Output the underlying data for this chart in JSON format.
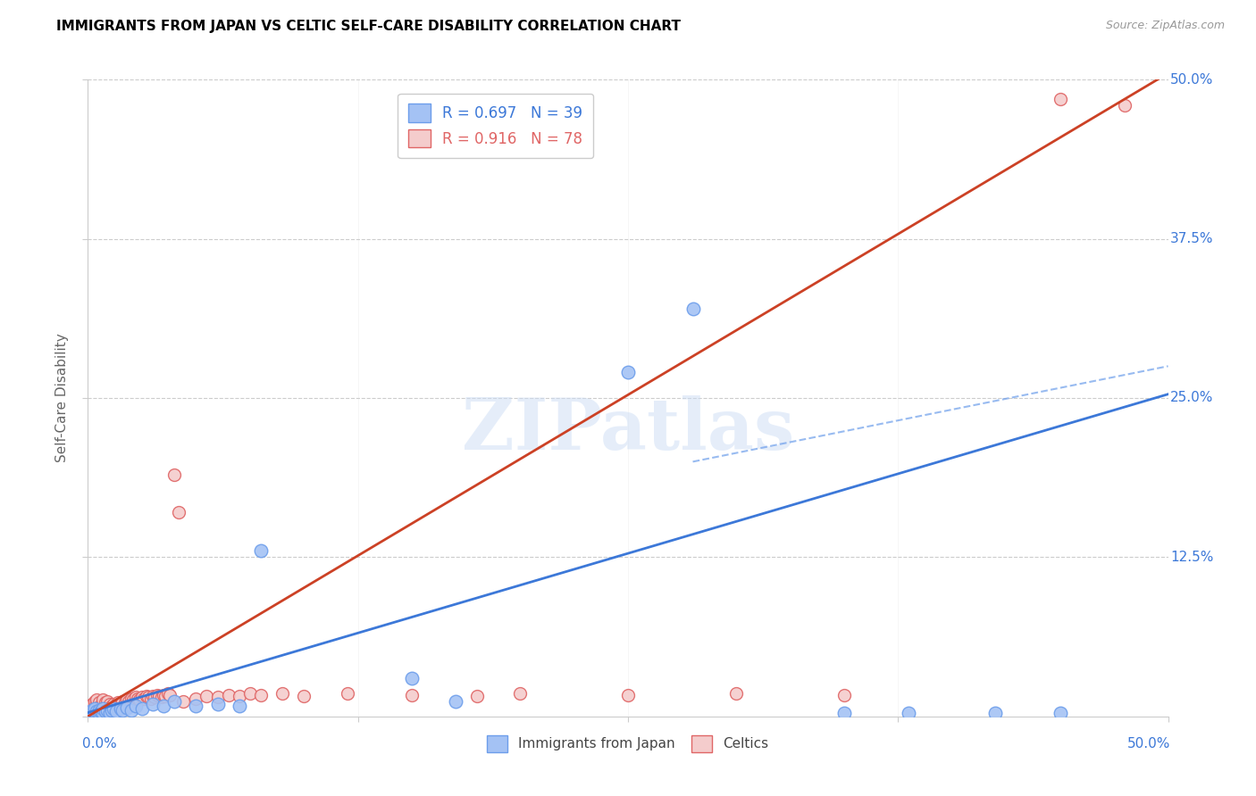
{
  "title": "IMMIGRANTS FROM JAPAN VS CELTIC SELF-CARE DISABILITY CORRELATION CHART",
  "source": "Source: ZipAtlas.com",
  "ylabel": "Self-Care Disability",
  "y_ticks": [
    0.0,
    0.125,
    0.25,
    0.375,
    0.5
  ],
  "y_tick_labels": [
    "",
    "12.5%",
    "25.0%",
    "37.5%",
    "50.0%"
  ],
  "x_ticks": [
    0.0,
    0.125,
    0.25,
    0.375,
    0.5
  ],
  "xlim": [
    0.0,
    0.5
  ],
  "ylim": [
    0.0,
    0.5
  ],
  "legend_r1": "R = 0.697",
  "legend_n1": "N = 39",
  "legend_r2": "R = 0.916",
  "legend_n2": "N = 78",
  "blue_face_color": "#a4c2f4",
  "blue_edge_color": "#6d9eeb",
  "pink_face_color": "#f4cccc",
  "pink_edge_color": "#e06666",
  "blue_line_color": "#3c78d8",
  "pink_line_color": "#cc4125",
  "blue_scatter": [
    [
      0.001,
      0.003
    ],
    [
      0.002,
      0.002
    ],
    [
      0.002,
      0.005
    ],
    [
      0.003,
      0.003
    ],
    [
      0.003,
      0.006
    ],
    [
      0.004,
      0.002
    ],
    [
      0.004,
      0.004
    ],
    [
      0.005,
      0.003
    ],
    [
      0.005,
      0.005
    ],
    [
      0.006,
      0.004
    ],
    [
      0.007,
      0.003
    ],
    [
      0.007,
      0.006
    ],
    [
      0.008,
      0.004
    ],
    [
      0.009,
      0.005
    ],
    [
      0.01,
      0.003
    ],
    [
      0.011,
      0.005
    ],
    [
      0.012,
      0.006
    ],
    [
      0.013,
      0.004
    ],
    [
      0.015,
      0.006
    ],
    [
      0.016,
      0.005
    ],
    [
      0.018,
      0.007
    ],
    [
      0.02,
      0.005
    ],
    [
      0.022,
      0.008
    ],
    [
      0.025,
      0.006
    ],
    [
      0.03,
      0.01
    ],
    [
      0.035,
      0.008
    ],
    [
      0.04,
      0.012
    ],
    [
      0.05,
      0.008
    ],
    [
      0.06,
      0.01
    ],
    [
      0.07,
      0.008
    ],
    [
      0.08,
      0.13
    ],
    [
      0.15,
      0.03
    ],
    [
      0.17,
      0.012
    ],
    [
      0.25,
      0.27
    ],
    [
      0.28,
      0.32
    ],
    [
      0.35,
      0.003
    ],
    [
      0.38,
      0.003
    ],
    [
      0.42,
      0.003
    ],
    [
      0.45,
      0.003
    ]
  ],
  "pink_scatter": [
    [
      0.001,
      0.003
    ],
    [
      0.001,
      0.005
    ],
    [
      0.001,
      0.007
    ],
    [
      0.002,
      0.003
    ],
    [
      0.002,
      0.005
    ],
    [
      0.002,
      0.008
    ],
    [
      0.002,
      0.01
    ],
    [
      0.003,
      0.004
    ],
    [
      0.003,
      0.006
    ],
    [
      0.003,
      0.009
    ],
    [
      0.003,
      0.012
    ],
    [
      0.004,
      0.004
    ],
    [
      0.004,
      0.007
    ],
    [
      0.004,
      0.01
    ],
    [
      0.004,
      0.013
    ],
    [
      0.005,
      0.005
    ],
    [
      0.005,
      0.008
    ],
    [
      0.005,
      0.011
    ],
    [
      0.006,
      0.006
    ],
    [
      0.006,
      0.009
    ],
    [
      0.007,
      0.007
    ],
    [
      0.007,
      0.01
    ],
    [
      0.007,
      0.013
    ],
    [
      0.008,
      0.008
    ],
    [
      0.008,
      0.011
    ],
    [
      0.009,
      0.009
    ],
    [
      0.009,
      0.012
    ],
    [
      0.01,
      0.01
    ],
    [
      0.01,
      0.007
    ],
    [
      0.011,
      0.008
    ],
    [
      0.012,
      0.01
    ],
    [
      0.013,
      0.009
    ],
    [
      0.014,
      0.011
    ],
    [
      0.015,
      0.01
    ],
    [
      0.016,
      0.012
    ],
    [
      0.017,
      0.011
    ],
    [
      0.018,
      0.013
    ],
    [
      0.019,
      0.012
    ],
    [
      0.02,
      0.014
    ],
    [
      0.021,
      0.013
    ],
    [
      0.022,
      0.015
    ],
    [
      0.023,
      0.014
    ],
    [
      0.024,
      0.013
    ],
    [
      0.025,
      0.015
    ],
    [
      0.026,
      0.014
    ],
    [
      0.027,
      0.016
    ],
    [
      0.028,
      0.015
    ],
    [
      0.029,
      0.014
    ],
    [
      0.03,
      0.016
    ],
    [
      0.031,
      0.015
    ],
    [
      0.032,
      0.017
    ],
    [
      0.033,
      0.016
    ],
    [
      0.034,
      0.015
    ],
    [
      0.035,
      0.017
    ],
    [
      0.036,
      0.016
    ],
    [
      0.037,
      0.018
    ],
    [
      0.038,
      0.017
    ],
    [
      0.04,
      0.19
    ],
    [
      0.042,
      0.16
    ],
    [
      0.044,
      0.012
    ],
    [
      0.05,
      0.014
    ],
    [
      0.055,
      0.016
    ],
    [
      0.06,
      0.015
    ],
    [
      0.065,
      0.017
    ],
    [
      0.07,
      0.016
    ],
    [
      0.075,
      0.018
    ],
    [
      0.08,
      0.017
    ],
    [
      0.09,
      0.018
    ],
    [
      0.1,
      0.016
    ],
    [
      0.12,
      0.018
    ],
    [
      0.15,
      0.017
    ],
    [
      0.18,
      0.016
    ],
    [
      0.2,
      0.018
    ],
    [
      0.25,
      0.017
    ],
    [
      0.3,
      0.018
    ],
    [
      0.35,
      0.017
    ],
    [
      0.45,
      0.485
    ],
    [
      0.48,
      0.48
    ]
  ],
  "blue_line_x": [
    0.0,
    0.5
  ],
  "blue_line_y": [
    0.003,
    0.253
  ],
  "pink_line_x": [
    0.0,
    0.5
  ],
  "pink_line_y": [
    0.0,
    0.505
  ],
  "dashed_line_x": [
    0.28,
    0.5
  ],
  "dashed_line_y": [
    0.2,
    0.275
  ],
  "watermark_text": "ZIPatlas",
  "background_color": "#ffffff",
  "grid_color": "#cccccc",
  "title_color": "#000000",
  "source_color": "#999999",
  "label_color": "#3c78d8",
  "ylabel_color": "#666666"
}
